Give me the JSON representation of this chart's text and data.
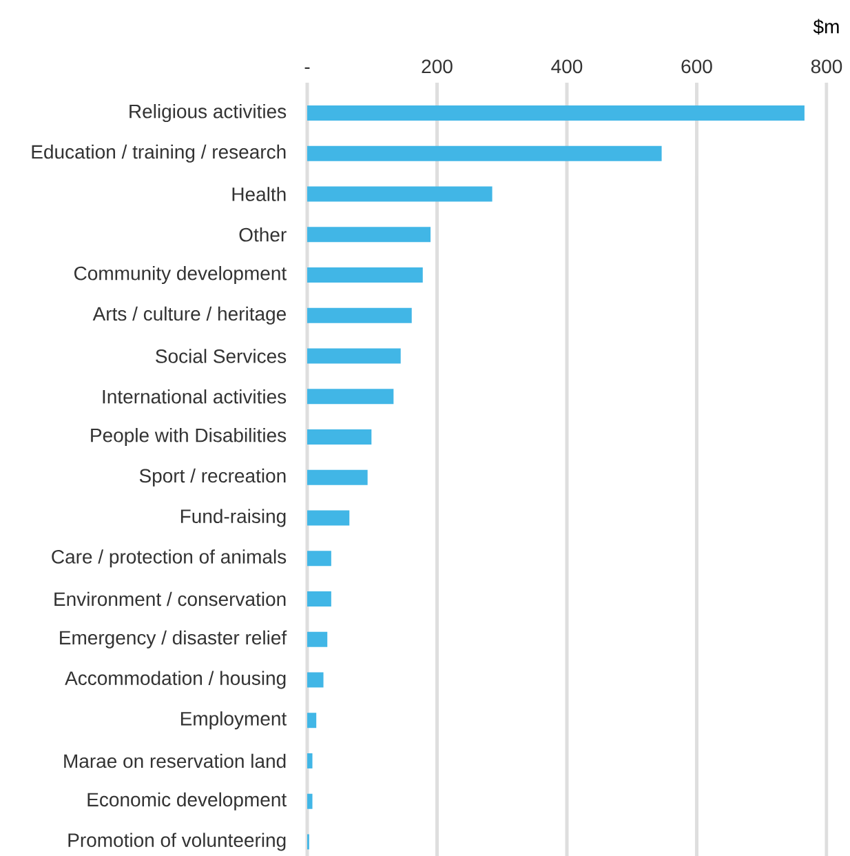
{
  "chart_data": {
    "type": "bar",
    "orientation": "horizontal",
    "xlabel": "$m",
    "categories": [
      "Religious activities",
      "Education / training / research",
      "Health",
      "Other",
      "Community development",
      "Arts / culture / heritage",
      "Social Services",
      "International activities",
      "People with Disabilities",
      "Sport / recreation",
      "Fund-raising",
      "Care / protection of animals",
      "Environment / conservation",
      "Emergency / disaster relief",
      "Accommodation / housing",
      "Employment",
      "Marae on reservation land",
      "Economic development",
      "Promotion of volunteering"
    ],
    "values": [
      766,
      546,
      285,
      190,
      178,
      161,
      144,
      133,
      99,
      93,
      65,
      37,
      37,
      31,
      25,
      14,
      8,
      8,
      3
    ],
    "color": "#41b6e6",
    "xlim": [
      0,
      800
    ],
    "xticks": [
      {
        "value": 0,
        "label": "-"
      },
      200,
      400,
      600,
      800
    ],
    "grid": "x"
  }
}
